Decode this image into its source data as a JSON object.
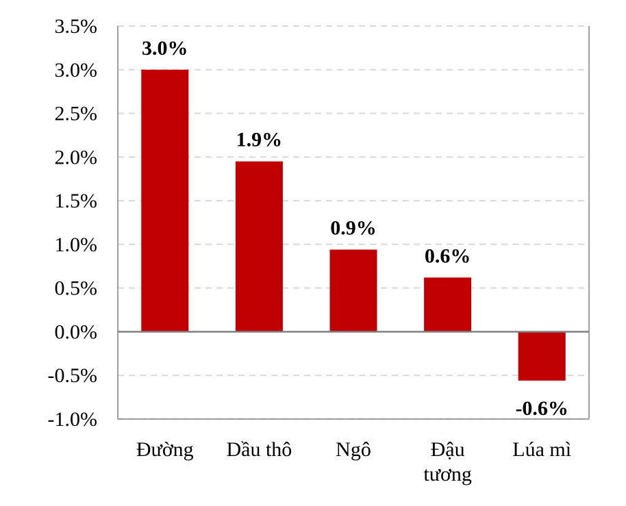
{
  "chart_data": {
    "type": "bar",
    "categories": [
      "Đường",
      "Dầu thô",
      "Ngô",
      "Đậu tương",
      "Lúa mì"
    ],
    "category_lines": [
      [
        "Đường"
      ],
      [
        "Dầu thô"
      ],
      [
        "Ngô"
      ],
      [
        "Đậu",
        "tương"
      ],
      [
        "Lúa mì"
      ]
    ],
    "values": [
      3.0,
      1.95,
      0.94,
      0.62,
      -0.56
    ],
    "data_labels": [
      "3.0%",
      "1.9%",
      "0.9%",
      "0.6%",
      "-0.6%"
    ],
    "title": "",
    "xlabel": "",
    "ylabel": "",
    "ylim": [
      -1.0,
      3.5
    ],
    "y_ticks": [
      3.5,
      3.0,
      2.5,
      2.0,
      1.5,
      1.0,
      0.5,
      0.0,
      -0.5,
      -1.0
    ],
    "y_tick_labels": [
      "3.5%",
      "3.0%",
      "2.5%",
      "2.0%",
      "1.5%",
      "1.0%",
      "0.5%",
      "0.0%",
      "-0.5%",
      "-1.0%"
    ],
    "grid": true,
    "legend": "none",
    "colors": {
      "bar": "#C00000",
      "grid": "#D9D9D9",
      "axis": "#808080",
      "zero_line": "#808080"
    }
  }
}
